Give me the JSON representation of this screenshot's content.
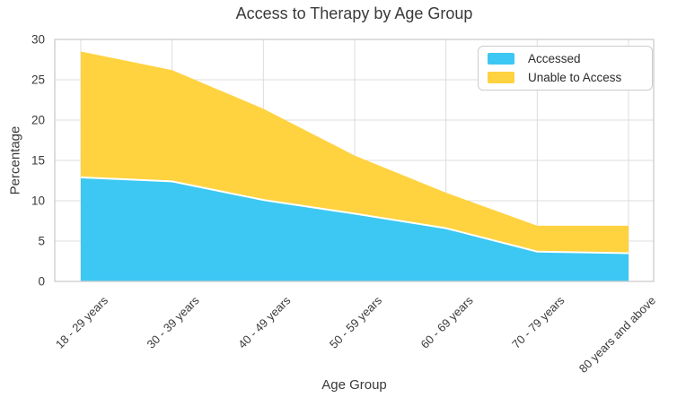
{
  "chart_data": {
    "type": "area",
    "stacked": true,
    "title": "Access to Therapy by Age Group",
    "xlabel": "Age Group",
    "ylabel": "Percentage",
    "categories": [
      "18 - 29 years",
      "30 - 39 years",
      "40 - 49 years",
      "50 - 59 years",
      "60 - 69 years",
      "70 - 79 years",
      "80 years and above"
    ],
    "series": [
      {
        "name": "Accessed",
        "color": "#3CC8F2",
        "values": [
          12.9,
          12.4,
          10.1,
          8.4,
          6.6,
          3.7,
          3.5
        ]
      },
      {
        "name": "Unable to Access",
        "color": "#FFD23F",
        "values": [
          15.6,
          13.8,
          11.3,
          7.2,
          4.4,
          3.2,
          3.4
        ]
      }
    ],
    "stacked_totals": [
      28.5,
      26.2,
      21.4,
      15.6,
      11.0,
      6.9,
      6.9
    ],
    "ylim": [
      0,
      30
    ],
    "yticks": [
      0,
      5,
      10,
      15,
      20,
      25,
      30
    ],
    "grid": true,
    "legend_position": "upper right"
  },
  "style": {
    "grid_color": "#dcdcdc",
    "border_color": "#cccccc",
    "tick_label_color": "#3a3a3a",
    "separator_color": "#ffffff",
    "background": "#ffffff"
  }
}
